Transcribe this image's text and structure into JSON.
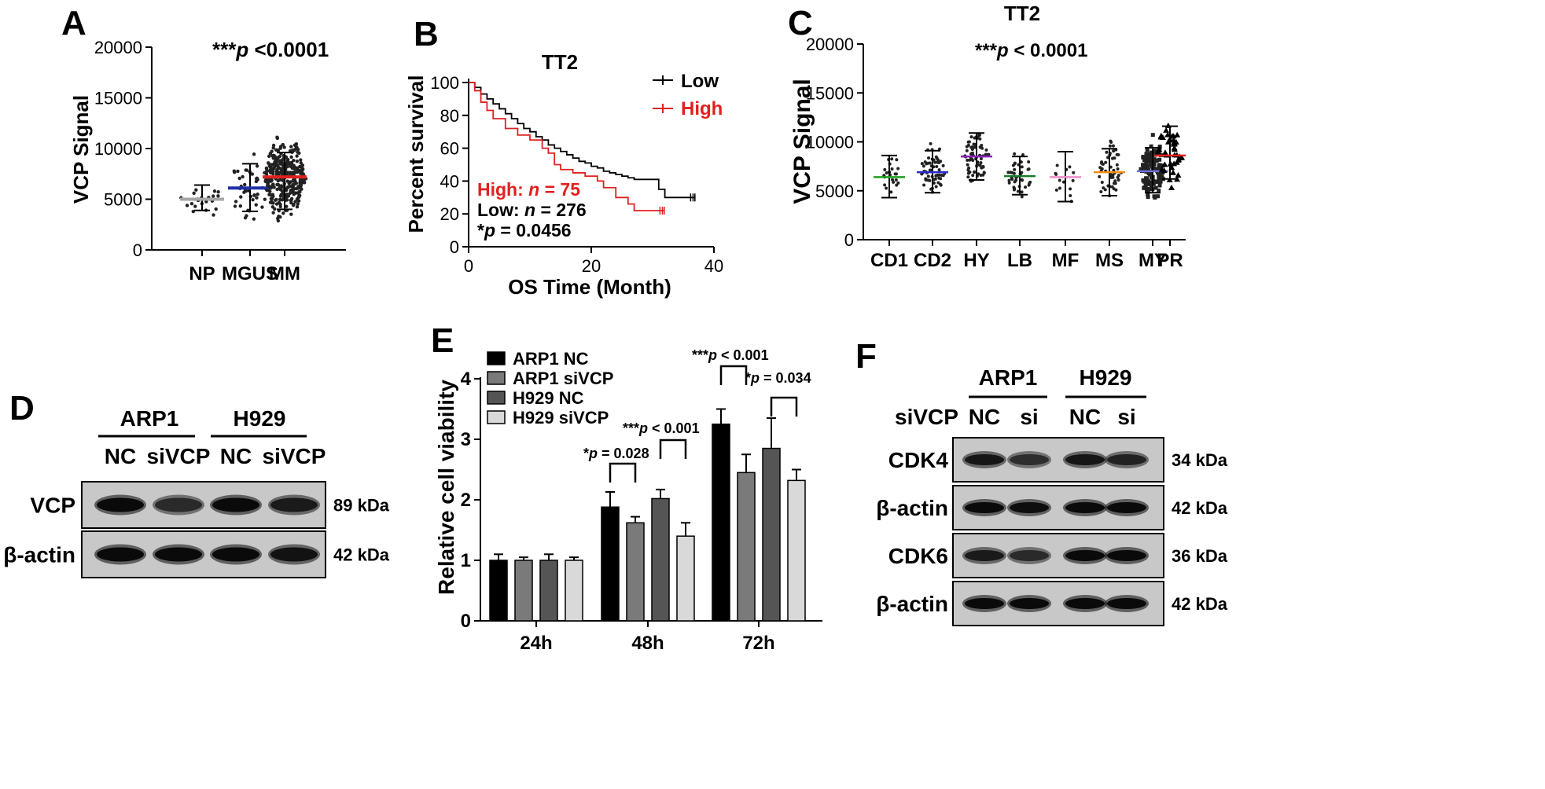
{
  "panels": {
    "A": "A",
    "B": "B",
    "C": "C",
    "D": "D",
    "E": "E",
    "F": "F"
  },
  "chart_data": [
    {
      "id": "A",
      "type": "scatter",
      "ylabel": "VCP Signal",
      "ylim": [
        0,
        20000
      ],
      "yticks": [
        "0",
        "5000",
        "10000",
        "15000",
        "20000"
      ],
      "categories": [
        "NP",
        "MGUS",
        "MM"
      ],
      "medians": [
        5000,
        6100,
        7200
      ],
      "sd_low": [
        3900,
        3800,
        4000
      ],
      "sd_high": [
        6400,
        8500,
        9600
      ],
      "colors": [
        "#a6a6a6",
        "#1f2fa8",
        "#e02020"
      ],
      "n_points": [
        22,
        44,
        350
      ],
      "annotation_prefix": "***",
      "annotation_p": "p",
      "annotation_rest": " <0.0001"
    },
    {
      "id": "B",
      "type": "line",
      "title": "TT2",
      "xlabel": "OS Time (Month)",
      "ylabel": "Percent survival",
      "xlim": [
        0,
        40
      ],
      "ylim": [
        0,
        100
      ],
      "xticks": [
        "0",
        "20",
        "40"
      ],
      "yticks": [
        "0",
        "20",
        "40",
        "60",
        "80",
        "100"
      ],
      "series": [
        {
          "name": "Low",
          "color": "#000000",
          "x": [
            0,
            1,
            2,
            3,
            4,
            5,
            6,
            7,
            8,
            9,
            10,
            11,
            12,
            13,
            14,
            15,
            16,
            17,
            18,
            19,
            20,
            21,
            22,
            23,
            24,
            25,
            26,
            27,
            28,
            29,
            30,
            31,
            32,
            35,
            37
          ],
          "y": [
            100,
            97,
            93,
            90,
            87,
            84,
            81,
            78,
            75,
            72,
            70,
            67,
            65,
            62,
            60,
            58,
            56,
            54,
            52,
            51,
            49,
            48,
            46,
            45,
            44,
            43,
            42,
            41,
            41,
            41,
            41,
            35,
            30,
            30,
            30
          ]
        },
        {
          "name": "High",
          "color": "#e02020",
          "x": [
            0,
            1,
            2,
            3,
            4,
            6,
            8,
            10,
            12,
            13,
            14,
            15,
            17,
            19,
            21,
            22,
            24,
            26,
            27,
            30,
            32
          ],
          "y": [
            100,
            95,
            88,
            83,
            78,
            72,
            68,
            65,
            60,
            57,
            50,
            47,
            45,
            43,
            40,
            36,
            30,
            26,
            22,
            22,
            22
          ]
        }
      ],
      "stats": {
        "high_label": "High: ",
        "high_n": "n",
        "high_val": " = 75",
        "low_label": "Low: ",
        "low_n": "n",
        "low_val": " = 276",
        "p_star": "*",
        "p": "p",
        "p_val": " = 0.0456"
      }
    },
    {
      "id": "C",
      "type": "scatter",
      "title": "TT2",
      "ylabel": "VCP Signal",
      "ylim": [
        0,
        20000
      ],
      "yticks": [
        "0",
        "5000",
        "10000",
        "15000",
        "20000"
      ],
      "categories": [
        "CD1",
        "CD2",
        "HY",
        "LB",
        "MF",
        "MS",
        "MY",
        "PR"
      ],
      "medians": [
        6400,
        6900,
        8500,
        6500,
        6400,
        6900,
        7000,
        8600
      ],
      "sd_low": [
        4300,
        4800,
        6100,
        4600,
        3900,
        4500,
        4800,
        6200
      ],
      "sd_high": [
        8600,
        9100,
        10900,
        8500,
        9000,
        9300,
        9400,
        11600
      ],
      "colors": [
        "#1ea01e",
        "#2a2ad0",
        "#8b22b8",
        "#1b7a2a",
        "#f08cc8",
        "#f08c10",
        "#7070e0",
        "#e02020"
      ],
      "n_points": [
        22,
        60,
        75,
        40,
        14,
        50,
        120,
        45
      ],
      "annotation_prefix": "***",
      "annotation_p": "p",
      "annotation_rest": " < 0.0001"
    },
    {
      "id": "E",
      "type": "bar",
      "ylabel": "Relative cell viability",
      "ylim": [
        0,
        4
      ],
      "yticks": [
        "0",
        "1",
        "2",
        "3",
        "4"
      ],
      "categories": [
        "24h",
        "48h",
        "72h"
      ],
      "series": [
        {
          "name": "ARP1 NC",
          "color": "#000000",
          "values": [
            1.0,
            1.88,
            3.25
          ],
          "err": [
            0.1,
            0.25,
            0.25
          ]
        },
        {
          "name": "ARP1 siVCP",
          "color": "#7a7a7a",
          "values": [
            1.0,
            1.62,
            2.45
          ],
          "err": [
            0.05,
            0.1,
            0.3
          ]
        },
        {
          "name": "H929 NC",
          "color": "#555555",
          "values": [
            1.0,
            2.02,
            2.85
          ],
          "err": [
            0.1,
            0.15,
            0.5
          ]
        },
        {
          "name": "H929 siVCP",
          "color": "#d9d9d9",
          "values": [
            1.0,
            1.4,
            2.32
          ],
          "err": [
            0.05,
            0.22,
            0.18
          ]
        }
      ],
      "annotations": [
        {
          "star": "*",
          "p": "p",
          "rest": " = 0.028"
        },
        {
          "star": "***",
          "p": "p",
          "rest": "  < 0.001"
        },
        {
          "star": "***",
          "p": "p",
          "rest": "  < 0.001"
        },
        {
          "star": "*",
          "p": "p",
          "rest": " = 0.034"
        }
      ]
    }
  ],
  "blotD": {
    "groups": [
      "ARP1",
      "H929"
    ],
    "lanes": [
      "NC",
      "siVCP",
      "NC",
      "siVCP"
    ],
    "rows": [
      {
        "label": "VCP",
        "kda": "89 kDa",
        "intensity": [
          1.0,
          0.6,
          1.0,
          0.8
        ]
      },
      {
        "label": "β-actin",
        "kda": "42 kDa",
        "intensity": [
          1.0,
          1.0,
          1.0,
          0.9
        ]
      }
    ]
  },
  "blotF": {
    "groups": [
      "ARP1",
      "H929"
    ],
    "sirow_label": "siVCP",
    "lanes": [
      "NC",
      "si",
      "NC",
      "si"
    ],
    "rows": [
      {
        "label": "CDK4",
        "kda": "34 kDa",
        "intensity": [
          0.85,
          0.55,
          0.85,
          0.7
        ]
      },
      {
        "label": "β-actin",
        "kda": "42 kDa",
        "intensity": [
          1.0,
          0.95,
          1.0,
          1.0
        ]
      },
      {
        "label": "CDK6",
        "kda": "36 kDa",
        "intensity": [
          0.8,
          0.6,
          1.0,
          1.0
        ]
      },
      {
        "label": "β-actin",
        "kda": "42 kDa",
        "intensity": [
          1.0,
          1.0,
          1.0,
          1.0
        ]
      }
    ]
  }
}
